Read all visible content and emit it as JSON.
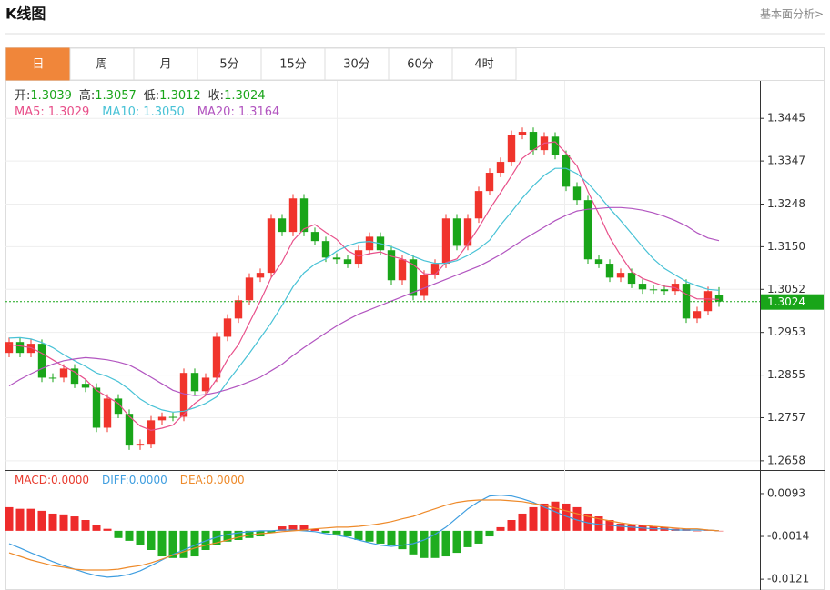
{
  "header": {
    "title": "K线图",
    "link": "基本面分析>"
  },
  "tabs": [
    "日",
    "周",
    "月",
    "5分",
    "15分",
    "30分",
    "60分",
    "4时"
  ],
  "active_tab": 0,
  "chart_data": [
    {
      "type": "candlestick",
      "open": [
        1.2906,
        1.2931,
        1.2906,
        1.2927,
        1.2849,
        1.2849,
        1.287,
        1.2835,
        1.2826,
        1.2734,
        1.2801,
        1.2766,
        1.2693,
        1.2697,
        1.2751,
        1.2759,
        1.2759,
        1.286,
        1.2818,
        1.2849,
        1.2943,
        1.2985,
        1.3027,
        1.3079,
        1.309,
        1.3215,
        1.3184,
        1.3261,
        1.3184,
        1.3163,
        1.3125,
        1.3121,
        1.3111,
        1.3142,
        1.3173,
        1.3142,
        1.3073,
        1.3121,
        1.3037,
        1.3086,
        1.3111,
        1.3215,
        1.3152,
        1.3215,
        1.3278,
        1.332,
        1.3345,
        1.3407,
        1.3414,
        1.3372,
        1.3403,
        1.3361,
        1.3288,
        1.3257,
        1.3121,
        1.3111,
        1.3079,
        1.309,
        1.3065,
        1.3052,
        1.3052,
        1.3048,
        1.3065,
        1.2985,
        1.3002,
        1.3039
      ],
      "high": [
        1.2941,
        1.2941,
        1.2937,
        1.2937,
        1.2859,
        1.288,
        1.288,
        1.2845,
        1.2836,
        1.2811,
        1.2811,
        1.2776,
        1.2707,
        1.2761,
        1.2769,
        1.2769,
        1.287,
        1.287,
        1.2859,
        1.2953,
        1.2995,
        1.3037,
        1.3089,
        1.31,
        1.3225,
        1.3225,
        1.3271,
        1.3271,
        1.3194,
        1.3173,
        1.3135,
        1.3131,
        1.3152,
        1.3183,
        1.3183,
        1.3152,
        1.3131,
        1.3131,
        1.3096,
        1.3121,
        1.3225,
        1.3225,
        1.3225,
        1.3288,
        1.333,
        1.3355,
        1.3417,
        1.3424,
        1.3424,
        1.3413,
        1.3413,
        1.3371,
        1.3298,
        1.3267,
        1.3131,
        1.3121,
        1.31,
        1.31,
        1.3075,
        1.3062,
        1.3062,
        1.3075,
        1.3075,
        1.3012,
        1.3058,
        1.3057
      ],
      "low": [
        1.2896,
        1.2896,
        1.2896,
        1.2839,
        1.2839,
        1.2839,
        1.2825,
        1.2816,
        1.2724,
        1.2724,
        1.2756,
        1.2683,
        1.2683,
        1.2687,
        1.2741,
        1.2749,
        1.2749,
        1.2808,
        1.2808,
        1.2839,
        1.2933,
        1.2975,
        1.3017,
        1.3069,
        1.308,
        1.3174,
        1.3174,
        1.3174,
        1.3153,
        1.3115,
        1.3111,
        1.3101,
        1.3101,
        1.3132,
        1.3132,
        1.3063,
        1.3063,
        1.3027,
        1.3027,
        1.3076,
        1.3101,
        1.3142,
        1.3142,
        1.3205,
        1.3268,
        1.331,
        1.3335,
        1.3397,
        1.3362,
        1.3362,
        1.3351,
        1.3278,
        1.3247,
        1.3111,
        1.3101,
        1.3069,
        1.3069,
        1.3055,
        1.3042,
        1.3042,
        1.3038,
        1.3038,
        1.2975,
        1.2975,
        1.2992,
        1.3012
      ],
      "close": [
        1.2931,
        1.2906,
        1.2927,
        1.2849,
        1.2849,
        1.287,
        1.2835,
        1.2826,
        1.2734,
        1.2801,
        1.2766,
        1.2693,
        1.2697,
        1.2751,
        1.2759,
        1.2759,
        1.286,
        1.2818,
        1.2849,
        1.2943,
        1.2985,
        1.3027,
        1.3079,
        1.309,
        1.3215,
        1.3184,
        1.3261,
        1.3184,
        1.3163,
        1.3125,
        1.3121,
        1.3111,
        1.3142,
        1.3173,
        1.3142,
        1.3073,
        1.3121,
        1.3037,
        1.3086,
        1.3111,
        1.3215,
        1.3152,
        1.3215,
        1.3278,
        1.332,
        1.3345,
        1.3407,
        1.3414,
        1.3372,
        1.3403,
        1.3361,
        1.3288,
        1.3257,
        1.3121,
        1.3111,
        1.3079,
        1.309,
        1.3065,
        1.3052,
        1.3052,
        1.3048,
        1.3065,
        1.2985,
        1.3002,
        1.3048,
        1.3024
      ],
      "up_color": "#f0342c",
      "down_color": "#19a519",
      "last_color": "#19a519",
      "readout_labels": [
        "开:",
        "高:",
        "低:",
        "收:"
      ],
      "ylim": [
        1.2641,
        1.3529
      ],
      "yticks": [
        1.3445,
        1.3347,
        1.3248,
        {
          "value": 1.315,
          "label": "1.3150"
        },
        1.3052,
        1.2953,
        1.2855,
        1.2757,
        1.2658
      ],
      "grid": true,
      "series": [
        {
          "name": "MA5:",
          "color": "#e8508a",
          "last_label": "1.3029",
          "values": [
            1.2925,
            1.2922,
            1.2918,
            1.2905,
            1.289,
            1.2875,
            1.2862,
            1.2845,
            1.282,
            1.2805,
            1.279,
            1.276,
            1.2738,
            1.2728,
            1.2733,
            1.274,
            1.2765,
            1.279,
            1.2808,
            1.2846,
            1.2891,
            1.2925,
            1.2975,
            1.3025,
            1.3079,
            1.3115,
            1.3164,
            1.3191,
            1.3201,
            1.3183,
            1.3167,
            1.3141,
            1.3128,
            1.3134,
            1.3138,
            1.3128,
            1.3122,
            1.3109,
            1.3088,
            1.3086,
            1.3114,
            1.3122,
            1.3156,
            1.3194,
            1.3236,
            1.3274,
            1.3313,
            1.3353,
            1.3372,
            1.3388,
            1.3391,
            1.3365,
            1.3336,
            1.3277,
            1.3225,
            1.3171,
            1.313,
            1.3093,
            1.3077,
            1.3068,
            1.3059,
            1.3056,
            1.3041,
            1.303,
            1.303,
            1.3029
          ]
        },
        {
          "name": "MA10:",
          "color": "#48c2d6",
          "last_label": "1.3050",
          "values": [
            1.294,
            1.2941,
            1.2938,
            1.293,
            1.2918,
            1.2902,
            1.2888,
            1.2875,
            1.286,
            1.2852,
            1.284,
            1.2822,
            1.28,
            1.2785,
            1.2775,
            1.277,
            1.2772,
            1.278,
            1.279,
            1.2805,
            1.284,
            1.2872,
            1.2905,
            1.294,
            1.2975,
            1.3015,
            1.3058,
            1.309,
            1.311,
            1.3122,
            1.314,
            1.3152,
            1.316,
            1.3162,
            1.3157,
            1.315,
            1.314,
            1.3128,
            1.3118,
            1.3112,
            1.3112,
            1.3118,
            1.313,
            1.3145,
            1.3165,
            1.32,
            1.323,
            1.3262,
            1.329,
            1.3314,
            1.333,
            1.333,
            1.3318,
            1.3296,
            1.3268,
            1.3238,
            1.321,
            1.318,
            1.315,
            1.3122,
            1.31,
            1.3085,
            1.307,
            1.306,
            1.3052,
            1.305
          ]
        },
        {
          "name": "MA20:",
          "color": "#b255c0",
          "last_label": "1.3164",
          "values": [
            1.283,
            1.2845,
            1.2858,
            1.287,
            1.288,
            1.2888,
            1.2892,
            1.2895,
            1.2893,
            1.289,
            1.2885,
            1.2878,
            1.2865,
            1.285,
            1.2835,
            1.282,
            1.2812,
            1.2808,
            1.281,
            1.2815,
            1.2822,
            1.283,
            1.284,
            1.285,
            1.2865,
            1.288,
            1.29,
            1.2918,
            1.2935,
            1.2952,
            1.2968,
            1.2982,
            1.2995,
            1.3005,
            1.3015,
            1.3025,
            1.3035,
            1.3045,
            1.3055,
            1.3065,
            1.3075,
            1.3085,
            1.3095,
            1.3105,
            1.3118,
            1.3132,
            1.3148,
            1.3165,
            1.318,
            1.3195,
            1.321,
            1.3222,
            1.3232,
            1.3236,
            1.3238,
            1.324,
            1.324,
            1.3238,
            1.3234,
            1.3228,
            1.322,
            1.321,
            1.3198,
            1.3182,
            1.317,
            1.3164
          ]
        }
      ]
    },
    {
      "type": "macd",
      "ylim": [
        -0.0148,
        0.0152
      ],
      "yticks": [
        0.0093,
        -0.0014,
        -0.0121
      ],
      "histogram": {
        "name": "MACD:",
        "up_color": "#ee2b2b",
        "down_color": "#1fad1f",
        "label_color": "#e8392c",
        "last_label": "0.0000",
        "values": [
          0.0059,
          0.0055,
          0.0055,
          0.005,
          0.0043,
          0.0041,
          0.0036,
          0.0027,
          0.0014,
          0.0005,
          -0.0018,
          -0.0025,
          -0.0036,
          -0.0048,
          -0.0064,
          -0.0068,
          -0.0068,
          -0.0064,
          -0.0048,
          -0.0036,
          -0.0027,
          -0.0023,
          -0.0018,
          -0.0014,
          -0.0005,
          0.0011,
          0.0014,
          0.0014,
          0.0005,
          -0.0005,
          -0.0009,
          -0.0014,
          -0.0023,
          -0.0027,
          -0.0032,
          -0.0036,
          -0.0046,
          -0.0059,
          -0.0068,
          -0.0068,
          -0.0064,
          -0.0055,
          -0.0041,
          -0.0032,
          -0.0014,
          0.0009,
          0.0027,
          0.0043,
          0.0059,
          0.0068,
          0.0073,
          0.0068,
          0.0059,
          0.0043,
          0.0036,
          0.0027,
          0.0018,
          0.0014,
          0.0014,
          0.0011,
          0.0009,
          0.0005,
          0.0005,
          0,
          0.0002,
          0
        ]
      },
      "series": [
        {
          "name": "DIFF:",
          "color": "#3f9ee0",
          "last_label": "0.0000",
          "values": [
            -0.0032,
            -0.0043,
            -0.0055,
            -0.0066,
            -0.0077,
            -0.0087,
            -0.0096,
            -0.0105,
            -0.0112,
            -0.0116,
            -0.0114,
            -0.0109,
            -0.01,
            -0.0087,
            -0.0073,
            -0.0059,
            -0.0048,
            -0.0036,
            -0.0025,
            -0.0016,
            -0.0009,
            -0.0005,
            -0.0002,
            0,
            0,
            0.0002,
            0.0002,
            0,
            -0.0002,
            -0.0007,
            -0.0011,
            -0.0016,
            -0.0023,
            -0.003,
            -0.0036,
            -0.0039,
            -0.0036,
            -0.0032,
            -0.0023,
            -0.0009,
            0.0009,
            0.0032,
            0.0055,
            0.0073,
            0.0087,
            0.0089,
            0.0087,
            0.008,
            0.0071,
            0.0059,
            0.0048,
            0.0036,
            0.0027,
            0.002,
            0.0016,
            0.0014,
            0.0011,
            0.0009,
            0.0007,
            0.0005,
            0.0005,
            0.0002,
            0.0002,
            0.0002,
            0.0002,
            0
          ]
        },
        {
          "name": "DEA:",
          "color": "#ee8a2a",
          "last_label": "0.0000",
          "values": [
            -0.0055,
            -0.0064,
            -0.0073,
            -0.008,
            -0.0087,
            -0.0091,
            -0.0096,
            -0.0098,
            -0.0098,
            -0.0098,
            -0.0096,
            -0.0091,
            -0.0087,
            -0.008,
            -0.0071,
            -0.0061,
            -0.0052,
            -0.0043,
            -0.0036,
            -0.003,
            -0.0023,
            -0.0016,
            -0.0011,
            -0.0007,
            -0.0005,
            -0.0002,
            0,
            0.0002,
            0.0005,
            0.0007,
            0.0009,
            0.0009,
            0.0011,
            0.0014,
            0.0018,
            0.0023,
            0.003,
            0.0036,
            0.0046,
            0.0055,
            0.0064,
            0.0071,
            0.0075,
            0.0077,
            0.0077,
            0.0077,
            0.0075,
            0.0073,
            0.0068,
            0.0064,
            0.0057,
            0.005,
            0.0043,
            0.0036,
            0.003,
            0.0025,
            0.002,
            0.0016,
            0.0014,
            0.0011,
            0.0009,
            0.0007,
            0.0005,
            0.0005,
            0.0002,
            0
          ]
        }
      ]
    }
  ]
}
